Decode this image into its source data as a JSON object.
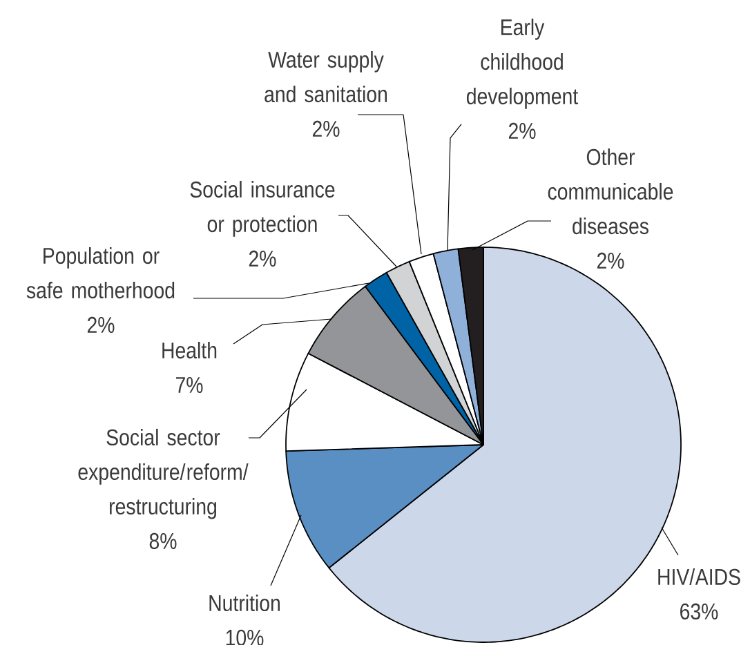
{
  "chart_data": {
    "type": "pie",
    "categories": [
      "HIV/AIDS",
      "Nutrition",
      "Social sector expenditure/reform/restructuring",
      "Health",
      "Population or safe motherhood",
      "Social insurance or protection",
      "Water supply and sanitation",
      "Early childhood development",
      "Other communicable diseases"
    ],
    "values": [
      63,
      10,
      8,
      7,
      2,
      2,
      2,
      2,
      2
    ],
    "value_labels": [
      "63%",
      "10%",
      "8%",
      "7%",
      "2%",
      "2%",
      "2%",
      "2%",
      "2%"
    ],
    "colors": [
      "#ccd8ea",
      "#5a8fc3",
      "#ffffff",
      "#939598",
      "#0063a6",
      "#d1d3d4",
      "#ffffff",
      "#8eb0d9",
      "#231f20"
    ]
  }
}
